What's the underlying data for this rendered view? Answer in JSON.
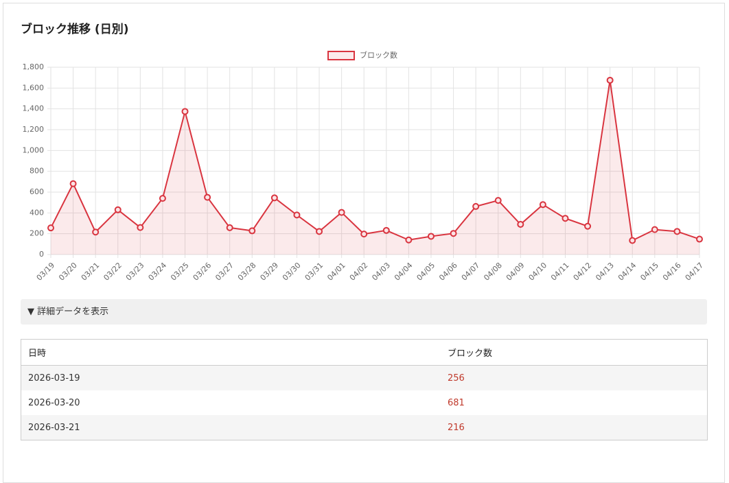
{
  "header": {
    "title": "ブロック推移 (日別)"
  },
  "chart_data": {
    "type": "line",
    "categories": [
      "03/19",
      "03/20",
      "03/21",
      "03/22",
      "03/23",
      "03/24",
      "03/25",
      "03/26",
      "03/27",
      "03/28",
      "03/29",
      "03/30",
      "03/31",
      "04/01",
      "04/02",
      "04/03",
      "04/04",
      "04/05",
      "04/06",
      "04/07",
      "04/08",
      "04/09",
      "04/10",
      "04/11",
      "04/12",
      "04/13",
      "04/14",
      "04/15",
      "04/16",
      "04/17"
    ],
    "series": [
      {
        "name": "ブロック数",
        "color": "#d9343f",
        "values": [
          256,
          681,
          216,
          430,
          260,
          540,
          1375,
          550,
          258,
          228,
          545,
          380,
          222,
          405,
          197,
          232,
          140,
          175,
          203,
          462,
          520,
          290,
          480,
          348,
          272,
          1675,
          135,
          240,
          222,
          148
        ]
      }
    ],
    "ylim": [
      0,
      1800
    ],
    "yticks": [
      0,
      200,
      400,
      600,
      800,
      {
        "value": 1000,
        "label": "1,000"
      },
      {
        "value": 1200,
        "label": "1,200"
      },
      {
        "value": 1400,
        "label": "1,400"
      },
      {
        "value": 1600,
        "label": "1,600"
      },
      {
        "value": 1800,
        "label": "1,800"
      }
    ],
    "grid": true,
    "legend": "top",
    "fill": true
  },
  "details": {
    "summary": "▼ 詳細データを表示"
  },
  "table": {
    "headers": [
      "日時",
      "ブロック数"
    ],
    "rows": [
      [
        "2026-03-19",
        256
      ],
      [
        "2026-03-20",
        681
      ],
      [
        "2026-03-21",
        216
      ]
    ]
  }
}
